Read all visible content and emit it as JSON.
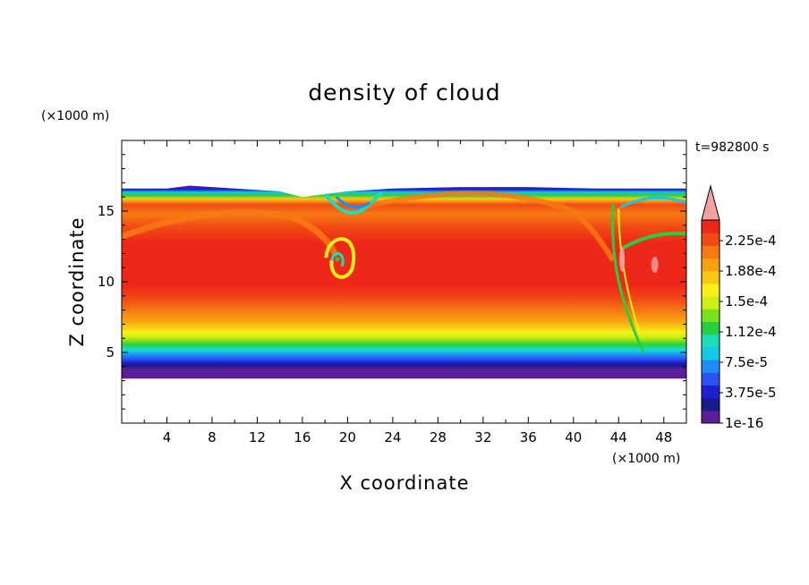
{
  "chart_data": {
    "type": "heatmap",
    "title": "density of cloud",
    "xlabel": "X coordinate",
    "ylabel": "Z coordinate",
    "x_unit": "(×1000 m)",
    "y_unit": "(×1000 m)",
    "time_label": "t=982800 s",
    "xlim": [
      0,
      50
    ],
    "ylim": [
      0,
      20
    ],
    "x_ticks": [
      4,
      8,
      12,
      16,
      20,
      24,
      28,
      32,
      36,
      40,
      44,
      48
    ],
    "y_ticks": [
      5,
      10,
      15
    ],
    "cloud_base_z": 3.4,
    "cloud_top_z": [
      {
        "x": 0,
        "z": 16.6
      },
      {
        "x": 4,
        "z": 16.6
      },
      {
        "x": 6,
        "z": 16.8
      },
      {
        "x": 10,
        "z": 16.6
      },
      {
        "x": 14,
        "z": 16.4
      },
      {
        "x": 16,
        "z": 16.0
      },
      {
        "x": 20,
        "z": 16.4
      },
      {
        "x": 24,
        "z": 16.6
      },
      {
        "x": 30,
        "z": 16.7
      },
      {
        "x": 36,
        "z": 16.7
      },
      {
        "x": 42,
        "z": 16.6
      },
      {
        "x": 50,
        "z": 16.6
      }
    ],
    "vortex_center": {
      "x": 19,
      "z": 11.5
    },
    "colorbar": {
      "labels": [
        "2.25e-4",
        "1.88e-4",
        "1.5e-4",
        "1.12e-4",
        "7.5e-5",
        "3.75e-5",
        "1e-16"
      ],
      "max_arrow_color": "#f2a0a0",
      "colors": [
        "#5b1e9a",
        "#1a1a8c",
        "#1e1ed2",
        "#2b52f2",
        "#1e8cf5",
        "#14c8e6",
        "#1edcb4",
        "#26d03c",
        "#7ae21c",
        "#cdee16",
        "#f7f018",
        "#f8c814",
        "#f8a010",
        "#f67a12",
        "#f24a16",
        "#ee2818"
      ]
    }
  }
}
